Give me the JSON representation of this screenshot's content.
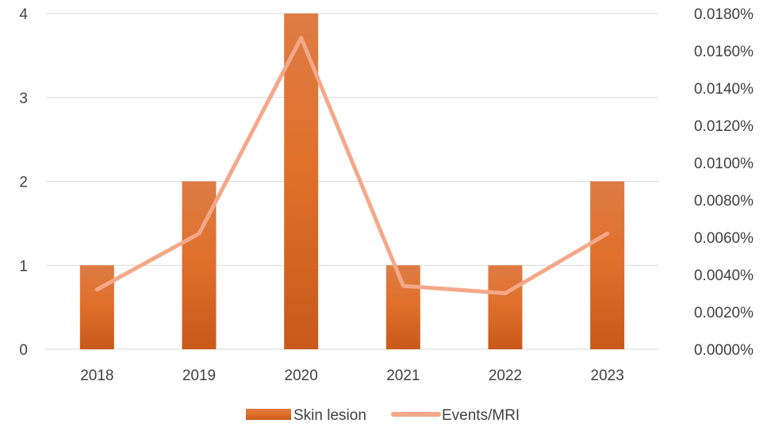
{
  "chart_data": {
    "type": "bar",
    "categories": [
      "2018",
      "2019",
      "2020",
      "2021",
      "2022",
      "2023"
    ],
    "series": [
      {
        "name": "Skin lesion",
        "type": "bar",
        "axis": "left",
        "values": [
          1,
          2,
          4,
          1,
          1,
          2
        ],
        "color": "#D9692A"
      },
      {
        "name": "Events/MRI",
        "type": "line",
        "axis": "right",
        "values": [
          0.0032,
          0.0062,
          0.0167,
          0.0034,
          0.003,
          0.0062
        ],
        "color": "#F4A889"
      }
    ],
    "y_left": {
      "min": 0,
      "max": 4,
      "ticks": [
        0,
        1,
        2,
        3,
        4
      ],
      "tick_labels": [
        "0",
        "1",
        "2",
        "3",
        "4"
      ]
    },
    "y_right": {
      "min": 0,
      "max": 0.018,
      "ticks": [
        0,
        0.002,
        0.004,
        0.006,
        0.008,
        0.01,
        0.012,
        0.014,
        0.016,
        0.018
      ],
      "tick_labels": [
        "0.0000%",
        "0.0020%",
        "0.0040%",
        "0.0060%",
        "0.0080%",
        "0.0100%",
        "0.0120%",
        "0.0140%",
        "0.0160%",
        "0.0180%"
      ]
    },
    "title": "",
    "xlabel": "",
    "ylabel": "",
    "grid": true,
    "legend": {
      "position": "bottom",
      "entries": [
        "Skin lesion",
        "Events/MRI"
      ]
    },
    "colors": {
      "gridline": "#D9D9D9",
      "axis_text": "#404040"
    }
  }
}
